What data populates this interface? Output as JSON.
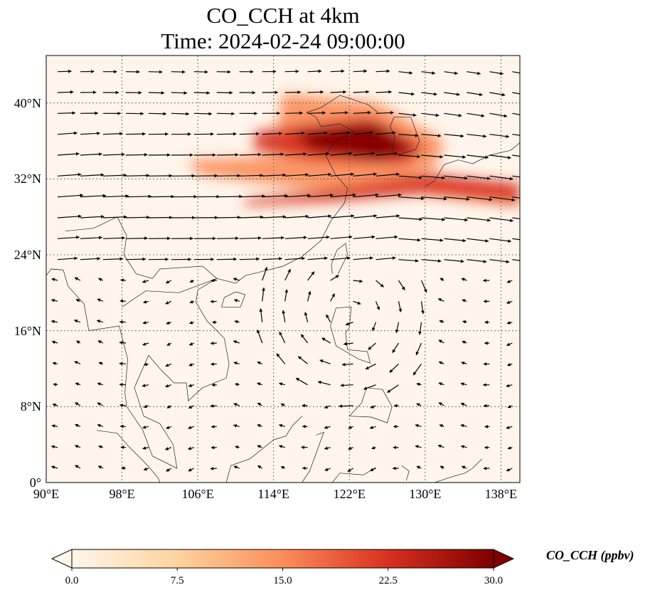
{
  "title": {
    "line1": "CO_CCH at 4km",
    "line2": "Time: 2024-02-24 09:00:00"
  },
  "map": {
    "lon_range": [
      90,
      140
    ],
    "lat_range": [
      0,
      45
    ],
    "x_ticks": [
      {
        "value": 90,
        "label": "90°E"
      },
      {
        "value": 98,
        "label": "98°E"
      },
      {
        "value": 106,
        "label": "106°E"
      },
      {
        "value": 114,
        "label": "114°E"
      },
      {
        "value": 122,
        "label": "122°E"
      },
      {
        "value": 130,
        "label": "130°E"
      },
      {
        "value": 138,
        "label": "138°E"
      }
    ],
    "y_ticks": [
      {
        "value": 0,
        "label": "0°"
      },
      {
        "value": 8,
        "label": "8°N"
      },
      {
        "value": 16,
        "label": "16°N"
      },
      {
        "value": 24,
        "label": "24°N"
      },
      {
        "value": 32,
        "label": "32°N"
      },
      {
        "value": 40,
        "label": "40°N"
      }
    ],
    "gridlines": true,
    "field": "CO_CCH",
    "vectors": "wind",
    "background_color": "#fff5eb"
  },
  "colorbar": {
    "label": "CO_CCH (ppbv)",
    "min": 0,
    "max": 30,
    "ticks": [
      {
        "value": 0,
        "label": "0.0"
      },
      {
        "value": 7.5,
        "label": "7.5"
      },
      {
        "value": 15,
        "label": "15.0"
      },
      {
        "value": 22.5,
        "label": "22.5"
      },
      {
        "value": 30,
        "label": "30.0"
      }
    ],
    "extend": "both",
    "colormap": "OrRd",
    "colors": [
      "#fff5eb",
      "#fdd49e",
      "#fc8d59",
      "#d7301f",
      "#7f0000"
    ]
  }
}
